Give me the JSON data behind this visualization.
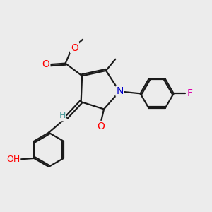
{
  "bg_color": "#ececec",
  "bond_color": "#1a1a1a",
  "line_width": 1.6,
  "font_size": 9,
  "atom_colors": {
    "O": "#ff0000",
    "N": "#0000cc",
    "F": "#dd00aa",
    "H_teal": "#4a9a9a",
    "C": "#1a1a1a"
  }
}
